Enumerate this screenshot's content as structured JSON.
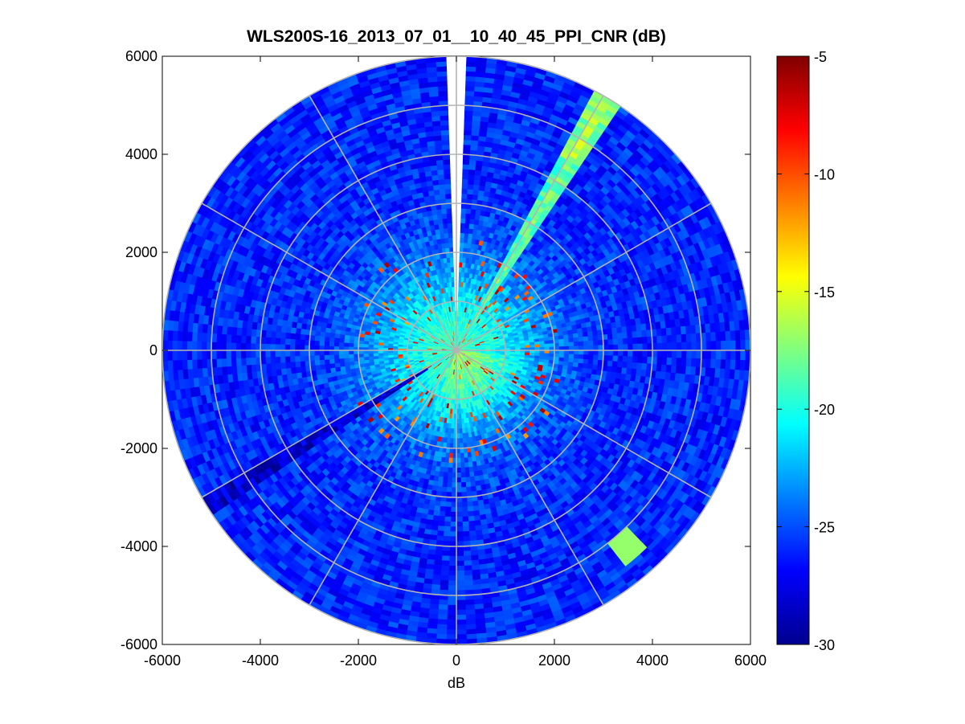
{
  "chart_data": {
    "type": "heatmap",
    "subtype": "polar-ppi",
    "title": "WLS200S-16_2013_07_01__10_40_45_PPI_CNR (dB)",
    "xlabel": "dB",
    "ylabel": "",
    "xlim": [
      -6000,
      6000
    ],
    "ylim": [
      -6000,
      6000
    ],
    "xticks": [
      "-6000",
      "-4000",
      "-2000",
      "0",
      "2000",
      "4000",
      "6000"
    ],
    "yticks": [
      "6000",
      "4000",
      "2000",
      "0",
      "-2000",
      "-4000",
      "-6000"
    ],
    "xtick_values": [
      -6000,
      -4000,
      -2000,
      0,
      2000,
      4000,
      6000
    ],
    "ytick_values": [
      6000,
      4000,
      2000,
      0,
      -2000,
      -4000,
      -6000
    ],
    "range_rings": [
      1000,
      2000,
      3000,
      4000,
      5000,
      6000
    ],
    "radial_spokes_deg": [
      0,
      30,
      60,
      90,
      120,
      150,
      180,
      210,
      240,
      270,
      300,
      330
    ],
    "max_range": 6000,
    "grid": true,
    "colorbar": {
      "min": -30,
      "max": -5,
      "ticks": [
        "-5",
        "-10",
        "-15",
        "-20",
        "-25",
        "-30"
      ],
      "tick_values": [
        -5,
        -10,
        -15,
        -20,
        -25,
        -30
      ],
      "colormap": "jet"
    },
    "features": {
      "background_far": -26,
      "background_near": -19,
      "bright_beam_azimuth_deg": 31,
      "bright_beam_value": -18,
      "dark_beam_azimuth_deg": 238,
      "dark_beam_value": -27,
      "blank_sector_azimuth_deg": [
        -1.4,
        1.4
      ],
      "hard_target_value": -9,
      "hot_spot_range": 5300,
      "hot_spot_azimuth_deg": 139
    }
  }
}
